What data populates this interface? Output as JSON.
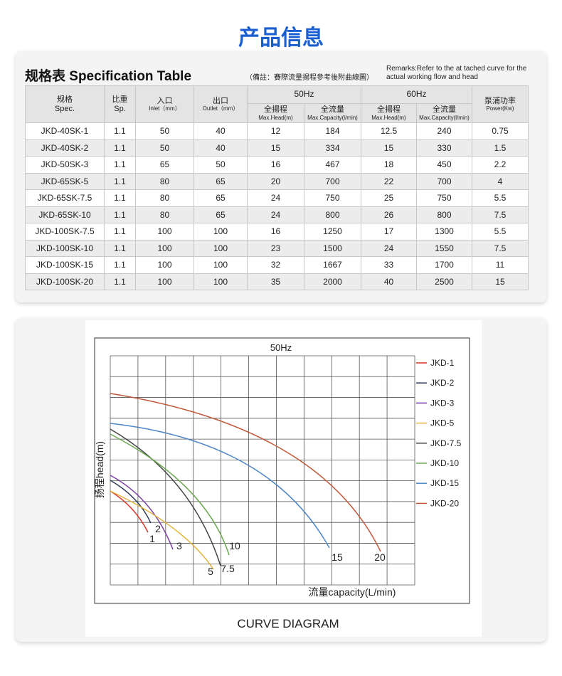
{
  "header": {
    "title": "产品信息"
  },
  "spec": {
    "heading": "规格表 Specification Table",
    "note": "（備註：賽際流量揚程參考後附曲線圖）",
    "remarks": [
      "Remarks:Refer to the at tached curve for the",
      "actual working flow and head"
    ],
    "table": {
      "columns": {
        "spec": [
          "规格",
          "Spec."
        ],
        "sp": [
          "比重",
          "Sp."
        ],
        "inlet": [
          "入口",
          "Inlet（mm）"
        ],
        "outlet": [
          "出口",
          "Outlet（mm）"
        ],
        "hz50": "50Hz",
        "hz60": "60Hz",
        "head50": [
          "全揚程",
          "Max.Head(m)"
        ],
        "cap50": [
          "全流量",
          "Max.Capacity(l/min)"
        ],
        "head60": [
          "全揚程",
          "Max.Head(m)"
        ],
        "cap60": [
          "全流量",
          "Max.Capacity(l/min)"
        ],
        "power": [
          "泵浦功率",
          "Power(Kw)"
        ]
      },
      "rows": [
        [
          "JKD-40SK-1",
          "1.1",
          "50",
          "40",
          "12",
          "184",
          "12.5",
          "240",
          "0.75"
        ],
        [
          "JKD-40SK-2",
          "1.1",
          "50",
          "40",
          "15",
          "334",
          "15",
          "330",
          "1.5"
        ],
        [
          "JKD-50SK-3",
          "1.1",
          "65",
          "50",
          "16",
          "467",
          "18",
          "450",
          "2.2"
        ],
        [
          "JKD-65SK-5",
          "1.1",
          "80",
          "65",
          "20",
          "700",
          "22",
          "700",
          "4"
        ],
        [
          "JKD-65SK-7.5",
          "1.1",
          "80",
          "65",
          "24",
          "750",
          "25",
          "750",
          "5.5"
        ],
        [
          "JKD-65SK-10",
          "1.1",
          "80",
          "65",
          "24",
          "800",
          "26",
          "800",
          "7.5"
        ],
        [
          "JKD-100SK-7.5",
          "1.1",
          "100",
          "100",
          "16",
          "1250",
          "17",
          "1300",
          "5.5"
        ],
        [
          "JKD-100SK-10",
          "1.1",
          "100",
          "100",
          "23",
          "1500",
          "24",
          "1550",
          "7.5"
        ],
        [
          "JKD-100SK-15",
          "1.1",
          "100",
          "100",
          "32",
          "1667",
          "33",
          "1700",
          "11"
        ],
        [
          "JKD-100SK-20",
          "1.1",
          "100",
          "100",
          "35",
          "2000",
          "40",
          "2500",
          "15"
        ]
      ]
    }
  },
  "curves": {
    "title": "50Hz",
    "y_label": "扬程head(m)",
    "x_label": "流量capacity(L/min)",
    "caption": "CURVE DIAGRAM",
    "series": [
      {
        "name": "JKD-1",
        "label": "1",
        "color": "#d9342b"
      },
      {
        "name": "JKD-2",
        "label": "2",
        "color": "#2b3a5a"
      },
      {
        "name": "JKD-3",
        "label": "3",
        "color": "#7a3fa0"
      },
      {
        "name": "JKD-5",
        "label": "5",
        "color": "#e3b43b"
      },
      {
        "name": "JKD-7.5",
        "label": "7.5",
        "color": "#444444"
      },
      {
        "name": "JKD-10",
        "label": "10",
        "color": "#6aa84f"
      },
      {
        "name": "JKD-15",
        "label": "15",
        "color": "#4f86c6"
      },
      {
        "name": "JKD-20",
        "label": "20",
        "color": "#c0593a"
      }
    ]
  }
}
